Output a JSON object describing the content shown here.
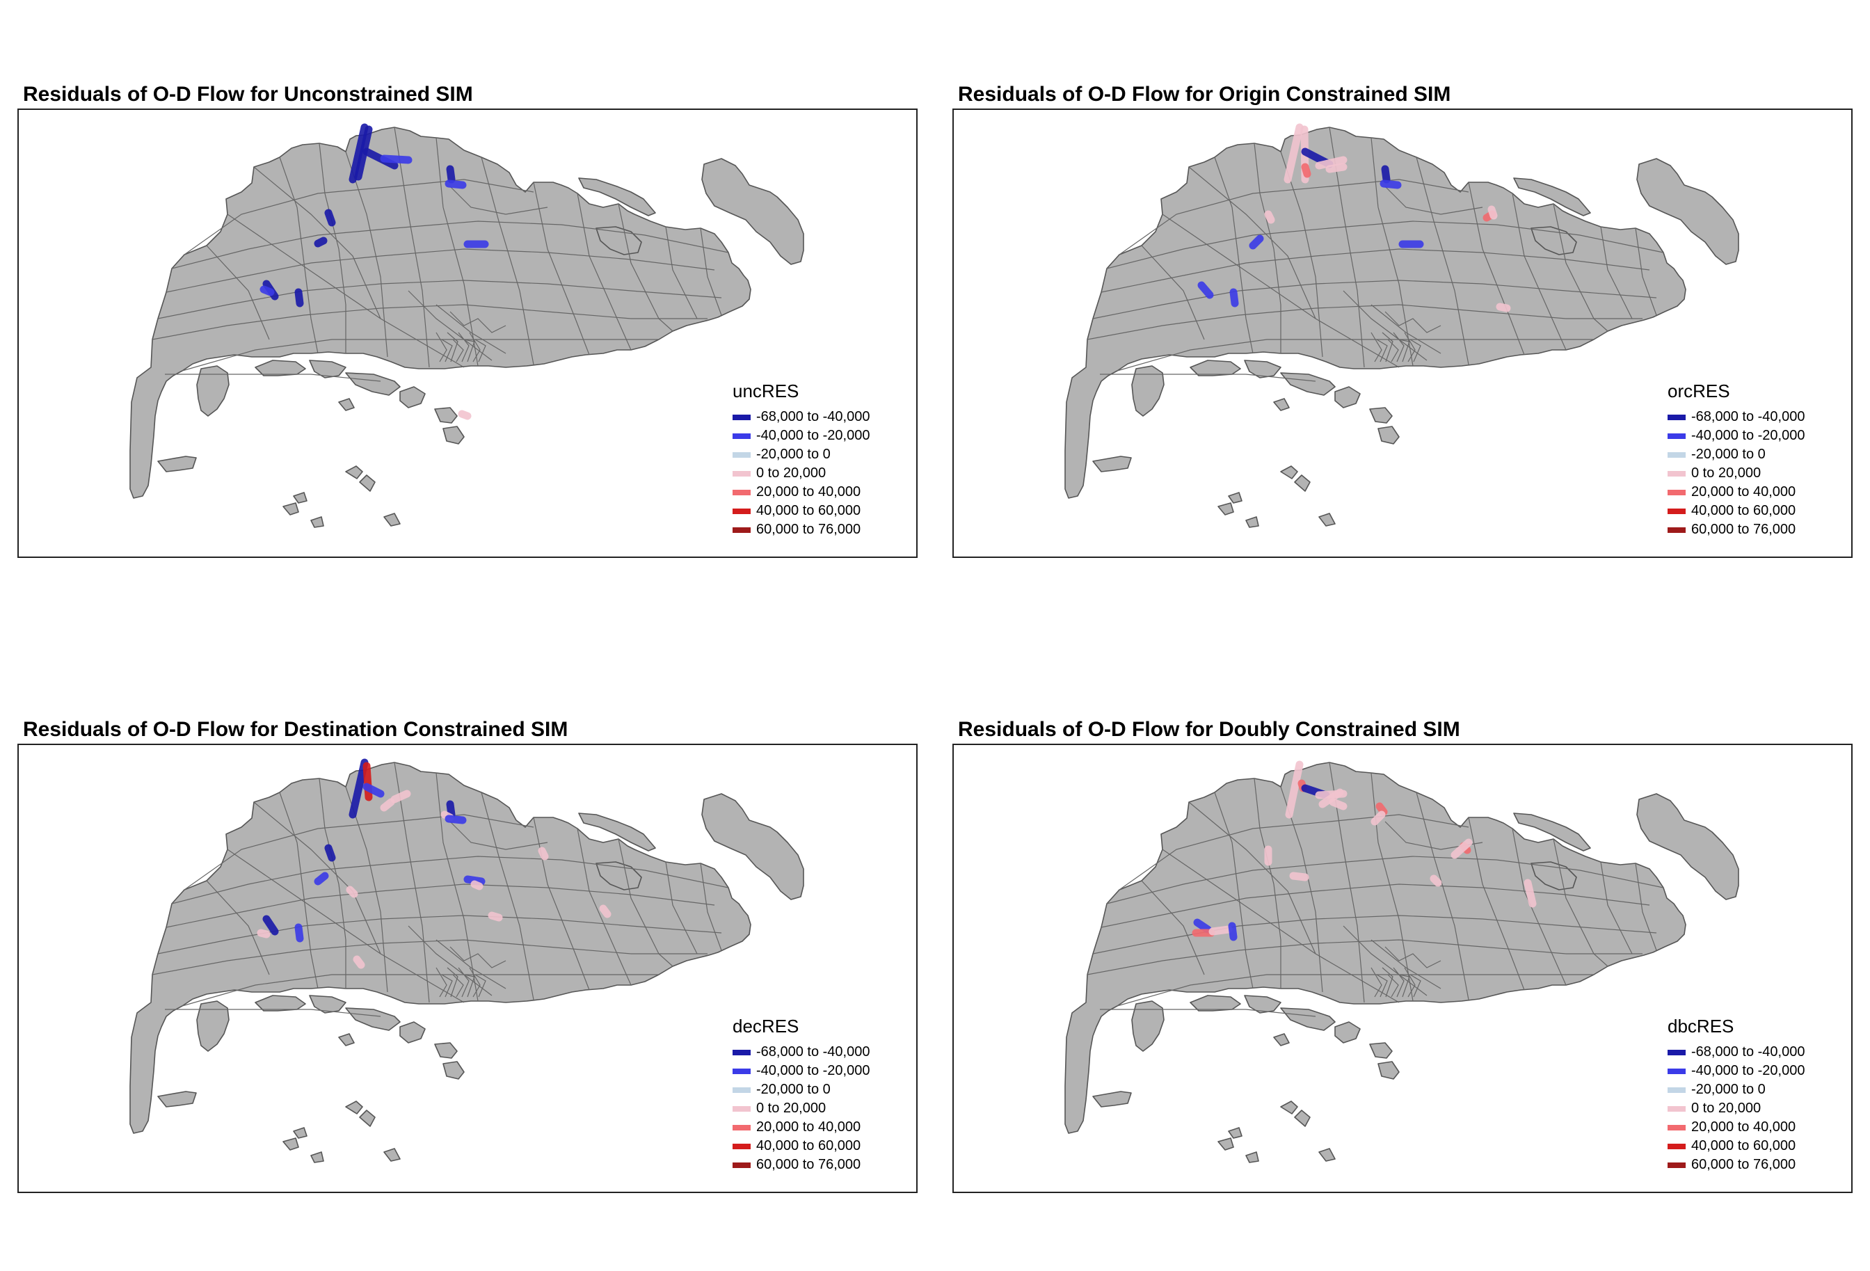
{
  "legend_colors": [
    "#1a1aa8",
    "#3b3be8",
    "#c3d6e6",
    "#f2c4cf",
    "#f26a6f",
    "#d41c1c",
    "#9e1a1a"
  ],
  "legend_labels": [
    "-68,000 to -40,000",
    "-40,000 to -20,000",
    "-20,000 to 0",
    "0 to 20,000",
    "20,000 to 40,000",
    "40,000 to 60,000",
    "60,000 to 76,000"
  ],
  "base_map_color": "#b3b3b3",
  "panels": [
    {
      "title": "Residuals of O-D Flow for Unconstrained SIM",
      "legend_title": "uncRES",
      "flows": [
        {
          "cls": 0,
          "pts": [
            [
              497,
              25
            ],
            [
              480,
              100
            ]
          ]
        },
        {
          "cls": 0,
          "pts": [
            [
              503,
              28
            ],
            [
              488,
              96
            ]
          ]
        },
        {
          "cls": 0,
          "pts": [
            [
              500,
              60
            ],
            [
              540,
              80
            ]
          ]
        },
        {
          "cls": 1,
          "pts": [
            [
              525,
              70
            ],
            [
              560,
              72
            ]
          ]
        },
        {
          "cls": 0,
          "pts": [
            [
              620,
              85
            ],
            [
              622,
              100
            ]
          ]
        },
        {
          "cls": 1,
          "pts": [
            [
              618,
              106
            ],
            [
              638,
              108
            ]
          ]
        },
        {
          "cls": 0,
          "pts": [
            [
              445,
              148
            ],
            [
              450,
              162
            ]
          ]
        },
        {
          "cls": 0,
          "pts": [
            [
              430,
              192
            ],
            [
              438,
              188
            ]
          ]
        },
        {
          "cls": 1,
          "pts": [
            [
              645,
              193
            ],
            [
              670,
              193
            ]
          ]
        },
        {
          "cls": 0,
          "pts": [
            [
              356,
              250
            ],
            [
              368,
              268
            ]
          ]
        },
        {
          "cls": 1,
          "pts": [
            [
              352,
              258
            ],
            [
              362,
              262
            ]
          ]
        },
        {
          "cls": 0,
          "pts": [
            [
              402,
              262
            ],
            [
              404,
              278
            ]
          ]
        },
        {
          "cls": 3,
          "pts": [
            [
              637,
              437
            ],
            [
              645,
              440
            ]
          ]
        }
      ]
    },
    {
      "title": "Residuals of O-D Flow for Origin Constrained SIM",
      "legend_title": "orcRES",
      "flows": [
        {
          "cls": 3,
          "pts": [
            [
              497,
              25
            ],
            [
              480,
              100
            ]
          ]
        },
        {
          "cls": 3,
          "pts": [
            [
              504,
              28
            ],
            [
              505,
              100
            ]
          ]
        },
        {
          "cls": 0,
          "pts": [
            [
              505,
              60
            ],
            [
              540,
              78
            ]
          ]
        },
        {
          "cls": 3,
          "pts": [
            [
              525,
              80
            ],
            [
              560,
              72
            ]
          ]
        },
        {
          "cls": 3,
          "pts": [
            [
              540,
              85
            ],
            [
              560,
              82
            ]
          ]
        },
        {
          "cls": 4,
          "pts": [
            [
              505,
              82
            ],
            [
              508,
              92
            ]
          ]
        },
        {
          "cls": 0,
          "pts": [
            [
              620,
              85
            ],
            [
              622,
              100
            ]
          ]
        },
        {
          "cls": 1,
          "pts": [
            [
              618,
              106
            ],
            [
              638,
              108
            ]
          ]
        },
        {
          "cls": 3,
          "pts": [
            [
              452,
              150
            ],
            [
              456,
              158
            ]
          ]
        },
        {
          "cls": 1,
          "pts": [
            [
              430,
              195
            ],
            [
              440,
              185
            ]
          ]
        },
        {
          "cls": 1,
          "pts": [
            [
              645,
              193
            ],
            [
              670,
              193
            ]
          ]
        },
        {
          "cls": 4,
          "pts": [
            [
              766,
              155
            ],
            [
              774,
              150
            ]
          ]
        },
        {
          "cls": 3,
          "pts": [
            [
              773,
              143
            ],
            [
              776,
              152
            ]
          ]
        },
        {
          "cls": 1,
          "pts": [
            [
              356,
              252
            ],
            [
              368,
              266
            ]
          ]
        },
        {
          "cls": 1,
          "pts": [
            [
              402,
              262
            ],
            [
              404,
              278
            ]
          ]
        },
        {
          "cls": 3,
          "pts": [
            [
              785,
              283
            ],
            [
              795,
              285
            ]
          ]
        }
      ]
    },
    {
      "title": "Residuals of O-D Flow for Destination Constrained SIM",
      "legend_title": "decRES",
      "flows": [
        {
          "cls": 0,
          "pts": [
            [
              497,
              25
            ],
            [
              480,
              100
            ]
          ]
        },
        {
          "cls": 5,
          "pts": [
            [
              500,
              30
            ],
            [
              503,
              75
            ]
          ]
        },
        {
          "cls": 1,
          "pts": [
            [
              500,
              60
            ],
            [
              520,
              70
            ]
          ]
        },
        {
          "cls": 3,
          "pts": [
            [
              540,
              78
            ],
            [
              558,
              70
            ]
          ]
        },
        {
          "cls": 3,
          "pts": [
            [
              525,
              90
            ],
            [
              535,
              82
            ]
          ]
        },
        {
          "cls": 0,
          "pts": [
            [
              620,
              85
            ],
            [
              622,
              100
            ]
          ]
        },
        {
          "cls": 3,
          "pts": [
            [
              612,
              100
            ],
            [
              620,
              104
            ]
          ]
        },
        {
          "cls": 1,
          "pts": [
            [
              618,
              106
            ],
            [
              638,
              108
            ]
          ]
        },
        {
          "cls": 0,
          "pts": [
            [
              445,
              148
            ],
            [
              450,
              162
            ]
          ]
        },
        {
          "cls": 1,
          "pts": [
            [
              430,
              196
            ],
            [
              440,
              188
            ]
          ]
        },
        {
          "cls": 3,
          "pts": [
            [
              476,
              208
            ],
            [
              482,
              214
            ]
          ]
        },
        {
          "cls": 1,
          "pts": [
            [
              645,
              193
            ],
            [
              665,
              196
            ]
          ]
        },
        {
          "cls": 3,
          "pts": [
            [
              655,
              200
            ],
            [
              662,
              203
            ]
          ]
        },
        {
          "cls": 3,
          "pts": [
            [
              752,
              152
            ],
            [
              756,
              160
            ]
          ]
        },
        {
          "cls": 0,
          "pts": [
            [
              356,
              250
            ],
            [
              368,
              268
            ]
          ]
        },
        {
          "cls": 3,
          "pts": [
            [
              348,
              270
            ],
            [
              356,
              272
            ]
          ]
        },
        {
          "cls": 1,
          "pts": [
            [
              402,
              262
            ],
            [
              404,
              278
            ]
          ]
        },
        {
          "cls": 3,
          "pts": [
            [
              680,
              245
            ],
            [
              690,
              248
            ]
          ]
        },
        {
          "cls": 3,
          "pts": [
            [
              840,
              235
            ],
            [
              846,
              243
            ]
          ]
        },
        {
          "cls": 3,
          "pts": [
            [
              486,
              308
            ],
            [
              492,
              316
            ]
          ]
        }
      ]
    },
    {
      "title": "Residuals of O-D Flow for Doubly Constrained SIM",
      "legend_title": "dbcRES",
      "flows": [
        {
          "cls": 3,
          "pts": [
            [
              497,
              28
            ],
            [
              482,
              100
            ]
          ]
        },
        {
          "cls": 4,
          "pts": [
            [
              500,
              55
            ],
            [
              502,
              62
            ]
          ]
        },
        {
          "cls": 0,
          "pts": [
            [
              505,
              62
            ],
            [
              535,
              72
            ]
          ]
        },
        {
          "cls": 3,
          "pts": [
            [
              525,
              72
            ],
            [
              560,
              70
            ]
          ]
        },
        {
          "cls": 3,
          "pts": [
            [
              530,
              85
            ],
            [
              555,
              68
            ]
          ]
        },
        {
          "cls": 3,
          "pts": [
            [
              545,
              82
            ],
            [
              560,
              88
            ]
          ]
        },
        {
          "cls": 4,
          "pts": [
            [
              612,
              88
            ],
            [
              618,
              96
            ]
          ]
        },
        {
          "cls": 3,
          "pts": [
            [
              605,
              110
            ],
            [
              615,
              100
            ]
          ]
        },
        {
          "cls": 3,
          "pts": [
            [
              452,
              150
            ],
            [
              452,
              168
            ]
          ]
        },
        {
          "cls": 3,
          "pts": [
            [
              488,
              188
            ],
            [
              505,
              190
            ]
          ]
        },
        {
          "cls": 4,
          "pts": [
            [
              733,
              145
            ],
            [
              738,
              151
            ]
          ]
        },
        {
          "cls": 3,
          "pts": [
            [
              720,
              158
            ],
            [
              740,
              140
            ]
          ]
        },
        {
          "cls": 3,
          "pts": [
            [
              690,
              192
            ],
            [
              696,
              198
            ]
          ]
        },
        {
          "cls": 3,
          "pts": [
            [
              825,
              198
            ],
            [
              832,
              228
            ]
          ]
        },
        {
          "cls": 1,
          "pts": [
            [
              350,
              255
            ],
            [
              365,
              265
            ]
          ]
        },
        {
          "cls": 4,
          "pts": [
            [
              348,
              270
            ],
            [
              370,
              270
            ]
          ]
        },
        {
          "cls": 3,
          "pts": [
            [
              372,
              268
            ],
            [
              395,
              265
            ]
          ]
        },
        {
          "cls": 1,
          "pts": [
            [
              400,
              260
            ],
            [
              402,
              276
            ]
          ]
        }
      ]
    }
  ]
}
